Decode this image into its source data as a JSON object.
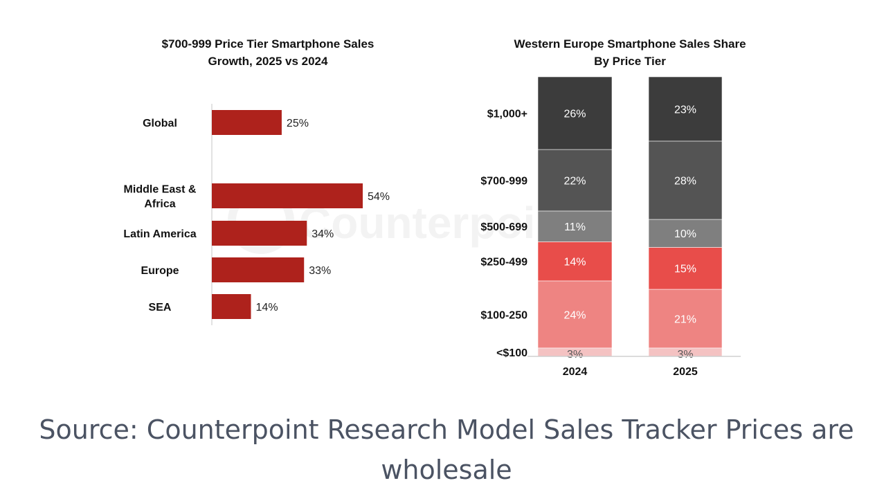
{
  "watermark": "Counterpoint",
  "caption": "Source: Counterpoint Research Model Sales Tracker Prices are wholesale",
  "chart_data": [
    {
      "type": "bar",
      "orientation": "horizontal",
      "title": [
        "$700-999 Price Tier Smartphone Sales",
        "Growth, 2025 vs 2024"
      ],
      "categories": [
        "Global",
        "Middle East & Africa",
        "Latin America",
        "Europe",
        "SEA"
      ],
      "values": [
        25,
        54,
        34,
        33,
        14
      ],
      "value_labels": [
        "25%",
        "54%",
        "34%",
        "33%",
        "14%"
      ],
      "unit": "%",
      "xlim": [
        0,
        60
      ],
      "color": "#ae221c",
      "grid": false
    },
    {
      "type": "bar",
      "stacked": true,
      "title": [
        "Western Europe Smartphone Sales Share",
        "By Price Tier"
      ],
      "categories": [
        "2024",
        "2025"
      ],
      "ylim": [
        0,
        100
      ],
      "unit": "%",
      "series": [
        {
          "name": "<$100",
          "values": [
            3,
            3
          ],
          "labels": [
            "3%",
            "3%"
          ],
          "color": "#f4c2c2",
          "text_color": "#555555"
        },
        {
          "name": "$100-250",
          "values": [
            24,
            21
          ],
          "labels": [
            "24%",
            "21%"
          ],
          "color": "#ee8482",
          "text_color": "#ffffff"
        },
        {
          "name": "$250-499",
          "values": [
            14,
            15
          ],
          "labels": [
            "14%",
            "15%"
          ],
          "color": "#e84d4a",
          "text_color": "#ffffff"
        },
        {
          "name": "$500-699",
          "values": [
            11,
            10
          ],
          "labels": [
            "11%",
            "10%"
          ],
          "color": "#7f7f7f",
          "text_color": "#ffffff"
        },
        {
          "name": "$700-999",
          "values": [
            22,
            28
          ],
          "labels": [
            "22%",
            "28%"
          ],
          "color": "#545454",
          "text_color": "#ffffff"
        },
        {
          "name": "$1,000+",
          "values": [
            26,
            23
          ],
          "labels": [
            "26%",
            "23%"
          ],
          "color": "#3c3c3c",
          "text_color": "#ffffff"
        }
      ],
      "grid": false
    }
  ]
}
